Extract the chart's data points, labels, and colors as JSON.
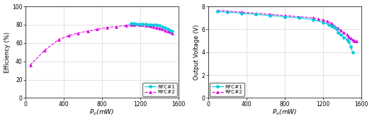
{
  "chart1": {
    "xlabel": "$P_o$(mW)",
    "ylabel": "Efficiency (%)",
    "xlim": [
      0,
      1600
    ],
    "ylim": [
      0,
      100
    ],
    "xticks": [
      0,
      400,
      800,
      1200,
      1600
    ],
    "yticks": [
      0,
      20,
      40,
      60,
      80,
      100
    ],
    "rfc1_x": [
      1100,
      1130,
      1160,
      1190,
      1220,
      1260,
      1290,
      1310,
      1340,
      1370,
      1400,
      1430,
      1460,
      1490,
      1510,
      1530
    ],
    "rfc1_y": [
      81.5,
      81.5,
      81,
      81,
      80.5,
      81,
      80,
      80,
      80,
      80,
      79,
      78,
      77,
      75,
      74,
      73
    ],
    "rfc2_x": [
      50,
      200,
      350,
      450,
      550,
      650,
      750,
      850,
      950,
      1050,
      1100,
      1130,
      1160,
      1190,
      1220,
      1260,
      1290,
      1310,
      1340,
      1370,
      1400,
      1430,
      1460,
      1490,
      1510,
      1530
    ],
    "rfc2_y": [
      36,
      52,
      64,
      68,
      71,
      73,
      75,
      77,
      78,
      79,
      80,
      80,
      80.5,
      80,
      80,
      79.5,
      79,
      78.5,
      78,
      77,
      76,
      75,
      74,
      73,
      72,
      71
    ],
    "rfc1_color": "#00ccdd",
    "rfc2_color": "#dd00dd",
    "legend_rfc1": "RFC#1",
    "legend_rfc2": "RFC#2",
    "legend_loc": "lower right"
  },
  "chart2": {
    "xlabel": "$P_o$(mW)",
    "ylabel": "Output Voltage (V)",
    "xlim": [
      0,
      1600
    ],
    "ylim": [
      0,
      8
    ],
    "xticks": [
      0,
      400,
      800,
      1200,
      1600
    ],
    "yticks": [
      0,
      2,
      4,
      6,
      8
    ],
    "rfc1_x": [
      100,
      200,
      350,
      500,
      650,
      800,
      950,
      1100,
      1200,
      1260,
      1290,
      1310,
      1340,
      1360,
      1390,
      1420,
      1450,
      1470,
      1490,
      1510
    ],
    "rfc1_y": [
      7.55,
      7.5,
      7.4,
      7.3,
      7.2,
      7.1,
      7.0,
      6.85,
      6.6,
      6.4,
      6.3,
      6.2,
      6.0,
      5.7,
      5.5,
      5.3,
      5.1,
      4.9,
      4.5,
      4.0
    ],
    "rfc2_x": [
      100,
      200,
      350,
      500,
      650,
      800,
      950,
      1100,
      1150,
      1200,
      1250,
      1290,
      1320,
      1360,
      1390,
      1420,
      1450,
      1470,
      1490,
      1510,
      1530,
      1550
    ],
    "rfc2_y": [
      7.65,
      7.6,
      7.5,
      7.4,
      7.3,
      7.2,
      7.1,
      7.0,
      6.9,
      6.8,
      6.7,
      6.5,
      6.3,
      6.1,
      5.9,
      5.7,
      5.55,
      5.35,
      5.2,
      5.1,
      5.0,
      4.95
    ],
    "rfc1_color": "#00ccdd",
    "rfc2_color": "#dd00dd",
    "legend_rfc1": "RFC#1",
    "legend_rfc2": "RFC#2",
    "legend_loc": "lower left"
  },
  "background_color": "#ffffff",
  "grid_color": "#cccccc"
}
